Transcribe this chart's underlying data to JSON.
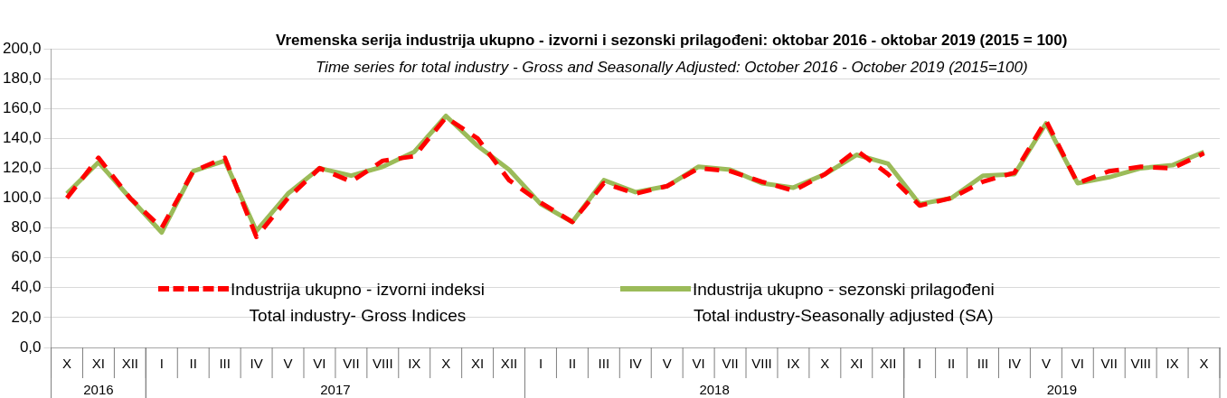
{
  "chart_data": {
    "type": "line",
    "title": "Vremenska serija industrija ukupno - izvorni i sezonski prilagođeni: oktobar 2016 - oktobar 2019 (2015 = 100)",
    "subtitle": "Time series for total industry - Gross and Seasonally Adjusted: October 2016 - October 2019 (2015=100)",
    "categories": [
      "X",
      "XI",
      "XII",
      "I",
      "II",
      "III",
      "IV",
      "V",
      "VI",
      "VII",
      "VIII",
      "IX",
      "X",
      "XI",
      "XII",
      "I",
      "II",
      "III",
      "IV",
      "V",
      "VI",
      "VII",
      "VIII",
      "IX",
      "X",
      "XI",
      "XII",
      "I",
      "II",
      "III",
      "IV",
      "V",
      "VI",
      "VII",
      "VIII",
      "IX",
      "X"
    ],
    "series": [
      {
        "name": "Industrija ukupno - izvorni indeksi\nTotal industry- Gross Indices",
        "color": "#ff0000",
        "line_style": "dashed",
        "values": [
          100,
          127,
          100,
          80,
          118,
          127,
          74,
          100,
          120,
          111,
          125,
          128,
          154,
          140,
          112,
          97,
          84,
          110,
          103,
          108,
          120,
          118,
          111,
          105,
          116,
          132,
          116,
          95,
          100,
          111,
          117,
          152,
          110,
          118,
          121,
          120,
          130
        ]
      },
      {
        "name": "Industrija ukupno - sezonski prilagođeni\nTotal industry-Seasonally adjusted (SA)",
        "color": "#9bbb59",
        "line_style": "solid",
        "values": [
          103,
          124,
          100,
          77,
          118,
          125,
          78,
          103,
          120,
          115,
          121,
          131,
          155,
          135,
          119,
          96,
          84,
          112,
          104,
          108,
          121,
          119,
          110,
          107,
          116,
          129,
          123,
          96,
          100,
          115,
          116,
          150,
          110,
          114,
          120,
          122,
          131
        ]
      }
    ],
    "ylim": [
      0,
      200
    ],
    "yticks": [
      {
        "value": 0,
        "label": "0,0"
      },
      {
        "value": 20,
        "label": "20,0"
      },
      {
        "value": 40,
        "label": "40,0"
      },
      {
        "value": 60,
        "label": "60,0"
      },
      {
        "value": 80,
        "label": "80,0"
      },
      {
        "value": 100,
        "label": "100,0"
      },
      {
        "value": 120,
        "label": "120,0"
      },
      {
        "value": 140,
        "label": "140,0"
      },
      {
        "value": 160,
        "label": "160,0"
      },
      {
        "value": 180,
        "label": "180,0"
      },
      {
        "value": 200,
        "label": "200,0"
      }
    ],
    "grid": "y",
    "legend": "bottom",
    "marker": "none",
    "annotations": [
      "2016",
      "2017",
      "2018",
      "2019"
    ]
  }
}
